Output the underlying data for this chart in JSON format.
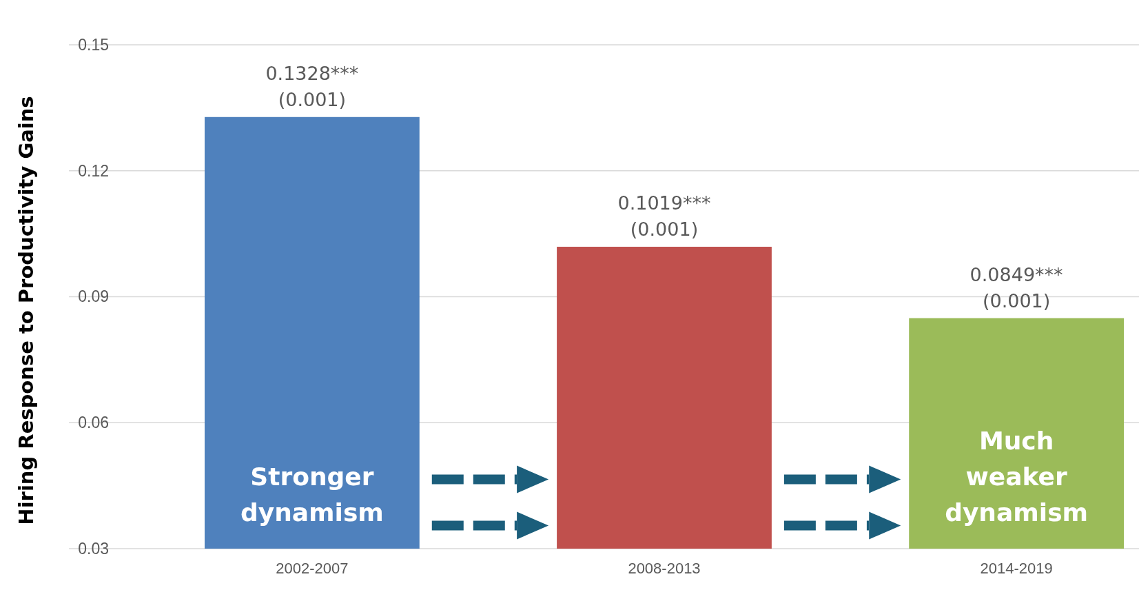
{
  "chart_data": {
    "type": "bar",
    "ylabel": "Hiring Response to Productivity Gains",
    "categories": [
      "2002-2007",
      "2008-2013",
      "2014-2019"
    ],
    "values": [
      0.1328,
      0.1019,
      0.0849
    ],
    "colors": [
      "#4f81bd",
      "#c0504d",
      "#9bbb59"
    ],
    "value_labels": [
      "0.1328***\n(0.001)",
      "0.1019***\n(0.001)",
      "0.0849***\n(0.001)"
    ],
    "ylim": [
      0.03,
      0.15
    ],
    "yticks": [
      {
        "value": 0.03,
        "label": "0.03"
      },
      {
        "value": 0.06,
        "label": "0.06"
      },
      {
        "value": 0.09,
        "label": "0.09"
      },
      {
        "value": 0.12,
        "label": "0.12"
      },
      {
        "value": 0.15,
        "label": "0.15"
      }
    ],
    "grid": "y",
    "annotations": [
      "Stronger\ndynamism",
      "Much\nweaker\ndynamism"
    ]
  }
}
